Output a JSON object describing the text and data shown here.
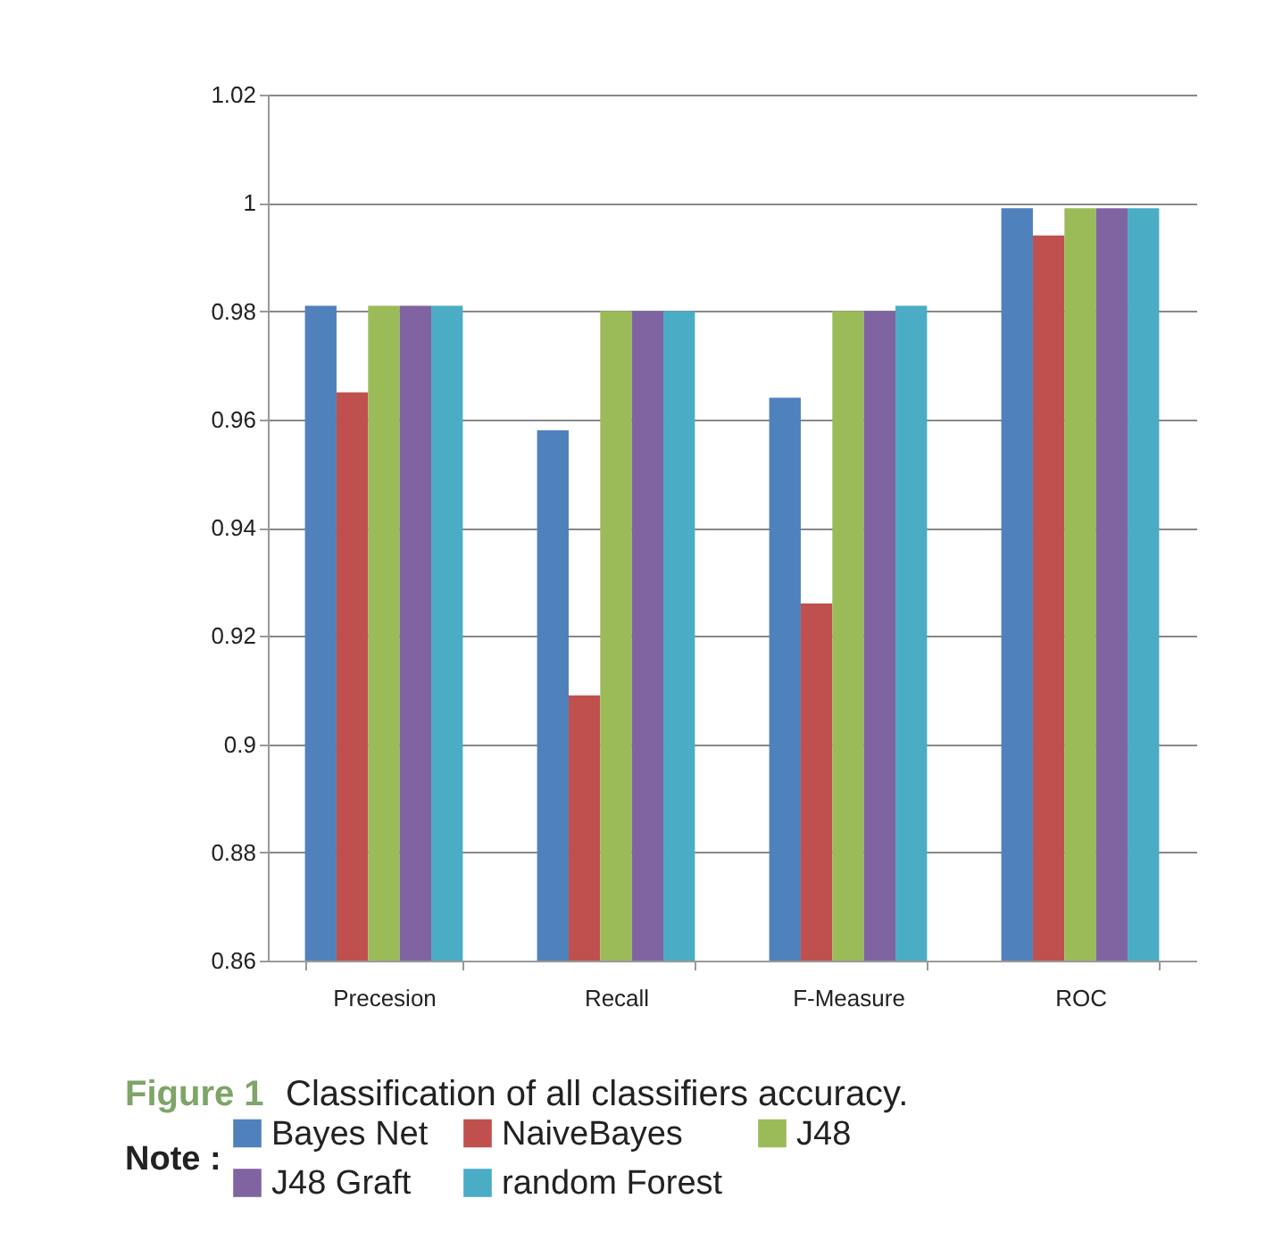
{
  "chart_data": {
    "type": "bar",
    "title": "Figure 1",
    "subtitle": "Classification of all classifiers accuracy.",
    "legend_title": "Note :",
    "categories": [
      "Precesion",
      "Recall",
      "F-Measure",
      "ROC"
    ],
    "series": [
      {
        "name": "Bayes Net",
        "color": "#4f81bd",
        "values": [
          0.981,
          0.958,
          0.964,
          0.999
        ]
      },
      {
        "name": "NaiveBayes",
        "color": "#c0504d",
        "values": [
          0.965,
          0.909,
          0.926,
          0.994
        ]
      },
      {
        "name": "J48",
        "color": "#9bbb59",
        "values": [
          0.981,
          0.98,
          0.98,
          0.999
        ]
      },
      {
        "name": "J48 Graft",
        "color": "#8064a2",
        "values": [
          0.981,
          0.98,
          0.98,
          0.999
        ]
      },
      {
        "name": "random Forest",
        "color": "#4bacc6",
        "values": [
          0.981,
          0.98,
          0.981,
          0.999
        ]
      }
    ],
    "ylim": [
      0.86,
      1.02
    ],
    "yticks": [
      0.86,
      0.88,
      0.9,
      0.92,
      0.94,
      0.96,
      0.98,
      1,
      1.02
    ],
    "grid": "y",
    "legend": "bottom"
  }
}
